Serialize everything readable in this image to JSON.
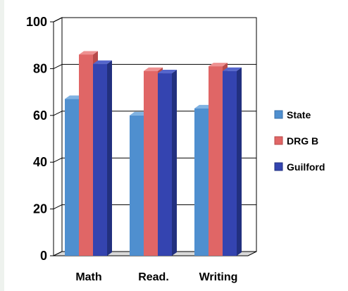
{
  "chart_data": {
    "type": "bar",
    "categories": [
      "Math",
      "Read.",
      "Writing"
    ],
    "series": [
      {
        "name": "State",
        "values": [
          67,
          60,
          63
        ],
        "color": "#4f8fcf",
        "side": "#3a6fa8",
        "top": "#7fb2e2"
      },
      {
        "name": "DRG B",
        "values": [
          86,
          79,
          81
        ],
        "color": "#e06666",
        "side": "#b84a4a",
        "top": "#ee9191"
      },
      {
        "name": "Guilford",
        "values": [
          82,
          78,
          79
        ],
        "color": "#3444b0",
        "side": "#22307f",
        "top": "#5566cc"
      }
    ],
    "ylim": [
      0,
      100
    ],
    "yticks": [
      0,
      20,
      40,
      60,
      80,
      100
    ],
    "grid": true,
    "legend_position": "right"
  }
}
